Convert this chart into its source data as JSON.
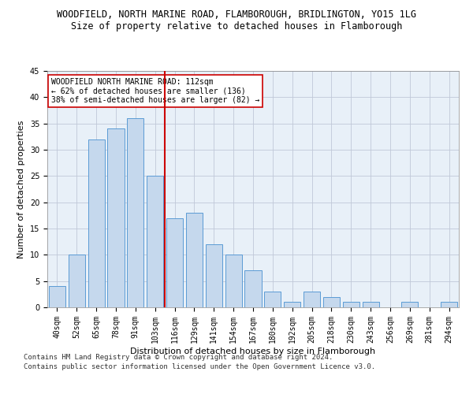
{
  "title_line1": "WOODFIELD, NORTH MARINE ROAD, FLAMBOROUGH, BRIDLINGTON, YO15 1LG",
  "title_line2": "Size of property relative to detached houses in Flamborough",
  "xlabel": "Distribution of detached houses by size in Flamborough",
  "ylabel": "Number of detached properties",
  "categories": [
    "40sqm",
    "52sqm",
    "65sqm",
    "78sqm",
    "91sqm",
    "103sqm",
    "116sqm",
    "129sqm",
    "141sqm",
    "154sqm",
    "167sqm",
    "180sqm",
    "192sqm",
    "205sqm",
    "218sqm",
    "230sqm",
    "243sqm",
    "256sqm",
    "269sqm",
    "281sqm",
    "294sqm"
  ],
  "values": [
    4,
    10,
    32,
    34,
    36,
    25,
    17,
    18,
    12,
    10,
    7,
    3,
    1,
    3,
    2,
    1,
    1,
    0,
    1,
    0,
    1
  ],
  "bar_color": "#c5d8ed",
  "bar_edge_color": "#5b9bd5",
  "vline_x": 5.5,
  "vline_color": "#cc0000",
  "annotation_line1": "WOODFIELD NORTH MARINE ROAD: 112sqm",
  "annotation_line2": "← 62% of detached houses are smaller (136)",
  "annotation_line3": "38% of semi-detached houses are larger (82) →",
  "annotation_box_color": "#ffffff",
  "annotation_border_color": "#cc0000",
  "ylim": [
    0,
    45
  ],
  "yticks": [
    0,
    5,
    10,
    15,
    20,
    25,
    30,
    35,
    40,
    45
  ],
  "footnote_line1": "Contains HM Land Registry data © Crown copyright and database right 2024.",
  "footnote_line2": "Contains public sector information licensed under the Open Government Licence v3.0.",
  "background_color": "#ffffff",
  "plot_bg_color": "#e8f0f8",
  "grid_color": "#c0c8d8",
  "title_fontsize": 8.5,
  "subtitle_fontsize": 8.5,
  "axis_label_fontsize": 8.0,
  "tick_fontsize": 7.0,
  "annotation_fontsize": 7.0,
  "footnote_fontsize": 6.5
}
